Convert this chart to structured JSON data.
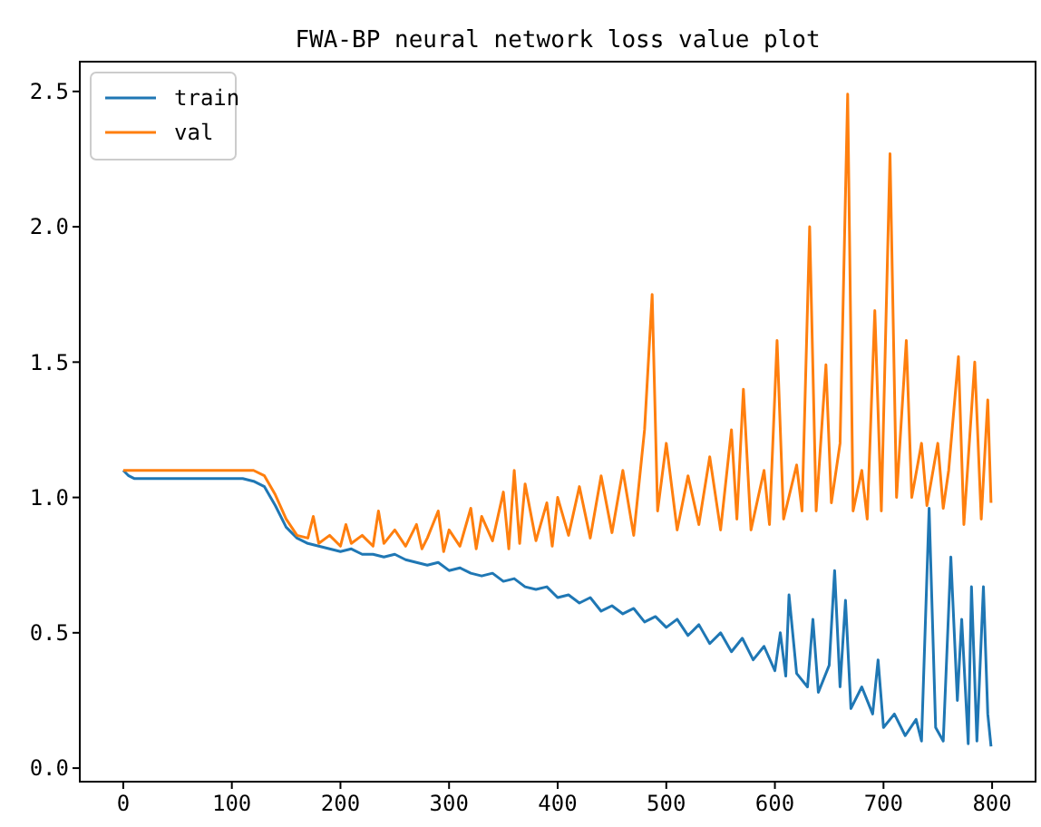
{
  "chart_data": {
    "type": "line",
    "title": "FWA-BP neural network loss value plot",
    "xlim": [
      -40,
      840
    ],
    "ylim": [
      -0.05,
      2.61
    ],
    "xticks": [
      0,
      100,
      200,
      300,
      400,
      500,
      600,
      700,
      800
    ],
    "yticks": [
      {
        "value": 0,
        "label": "0.0"
      },
      {
        "value": 0.5,
        "label": "0.5"
      },
      {
        "value": 1,
        "label": "1.0"
      },
      {
        "value": 1.5,
        "label": "1.5"
      },
      {
        "value": 2,
        "label": "2.0"
      },
      {
        "value": 2.5,
        "label": "2.5"
      }
    ],
    "legend": "top left",
    "grid": false,
    "series": [
      {
        "name": "train",
        "color": "#1f77b4",
        "x": [
          0,
          5,
          10,
          20,
          40,
          60,
          80,
          100,
          110,
          120,
          130,
          140,
          150,
          160,
          170,
          180,
          190,
          200,
          210,
          220,
          230,
          240,
          250,
          260,
          270,
          280,
          290,
          300,
          310,
          320,
          330,
          340,
          350,
          360,
          370,
          380,
          390,
          400,
          410,
          420,
          430,
          440,
          450,
          460,
          470,
          480,
          490,
          500,
          510,
          520,
          530,
          540,
          550,
          560,
          570,
          580,
          590,
          600,
          605,
          610,
          613,
          620,
          630,
          635,
          640,
          650,
          655,
          660,
          665,
          670,
          680,
          690,
          695,
          700,
          710,
          720,
          730,
          735,
          742,
          748,
          755,
          762,
          768,
          772,
          778,
          781,
          786,
          792,
          796,
          799
        ],
        "values": [
          1.1,
          1.08,
          1.07,
          1.07,
          1.07,
          1.07,
          1.07,
          1.07,
          1.07,
          1.06,
          1.04,
          0.97,
          0.89,
          0.85,
          0.83,
          0.82,
          0.81,
          0.8,
          0.81,
          0.79,
          0.79,
          0.78,
          0.79,
          0.77,
          0.76,
          0.75,
          0.76,
          0.73,
          0.74,
          0.72,
          0.71,
          0.72,
          0.69,
          0.7,
          0.67,
          0.66,
          0.67,
          0.63,
          0.64,
          0.61,
          0.63,
          0.58,
          0.6,
          0.57,
          0.59,
          0.54,
          0.56,
          0.52,
          0.55,
          0.49,
          0.53,
          0.46,
          0.5,
          0.43,
          0.48,
          0.4,
          0.45,
          0.36,
          0.5,
          0.34,
          0.64,
          0.35,
          0.3,
          0.55,
          0.28,
          0.38,
          0.73,
          0.3,
          0.62,
          0.22,
          0.3,
          0.2,
          0.4,
          0.15,
          0.2,
          0.12,
          0.18,
          0.1,
          0.96,
          0.15,
          0.1,
          0.78,
          0.25,
          0.55,
          0.09,
          0.67,
          0.1,
          0.67,
          0.2,
          0.08
        ]
      },
      {
        "name": "val",
        "color": "#ff7f0e",
        "x": [
          0,
          10,
          20,
          40,
          60,
          80,
          100,
          110,
          120,
          130,
          140,
          150,
          160,
          170,
          175,
          180,
          190,
          200,
          205,
          210,
          220,
          230,
          235,
          240,
          250,
          260,
          270,
          275,
          280,
          290,
          295,
          300,
          310,
          320,
          325,
          330,
          340,
          350,
          355,
          360,
          365,
          370,
          380,
          390,
          395,
          400,
          410,
          420,
          430,
          440,
          450,
          460,
          470,
          480,
          487,
          492,
          500,
          510,
          520,
          530,
          540,
          550,
          560,
          565,
          571,
          578,
          590,
          595,
          602,
          608,
          620,
          625,
          632,
          638,
          647,
          652,
          660,
          667,
          672,
          680,
          685,
          692,
          698,
          706,
          712,
          721,
          726,
          735,
          740,
          750,
          755,
          760,
          769,
          774,
          784,
          790,
          796,
          799
        ],
        "values": [
          1.1,
          1.1,
          1.1,
          1.1,
          1.1,
          1.1,
          1.1,
          1.1,
          1.1,
          1.08,
          1.01,
          0.92,
          0.86,
          0.85,
          0.93,
          0.83,
          0.86,
          0.82,
          0.9,
          0.83,
          0.86,
          0.82,
          0.95,
          0.83,
          0.88,
          0.82,
          0.9,
          0.81,
          0.85,
          0.95,
          0.8,
          0.88,
          0.82,
          0.96,
          0.81,
          0.93,
          0.84,
          1.02,
          0.81,
          1.1,
          0.83,
          1.05,
          0.84,
          0.98,
          0.82,
          1.0,
          0.86,
          1.04,
          0.85,
          1.08,
          0.87,
          1.1,
          0.86,
          1.25,
          1.75,
          0.95,
          1.2,
          0.88,
          1.08,
          0.9,
          1.15,
          0.88,
          1.25,
          0.92,
          1.4,
          0.88,
          1.1,
          0.9,
          1.58,
          0.92,
          1.12,
          0.95,
          2.0,
          0.95,
          1.49,
          0.98,
          1.2,
          2.49,
          0.95,
          1.1,
          0.92,
          1.69,
          0.95,
          2.27,
          1.0,
          1.58,
          1.0,
          1.2,
          0.97,
          1.2,
          0.96,
          1.1,
          1.52,
          0.9,
          1.5,
          0.92,
          1.36,
          0.98
        ]
      }
    ]
  }
}
